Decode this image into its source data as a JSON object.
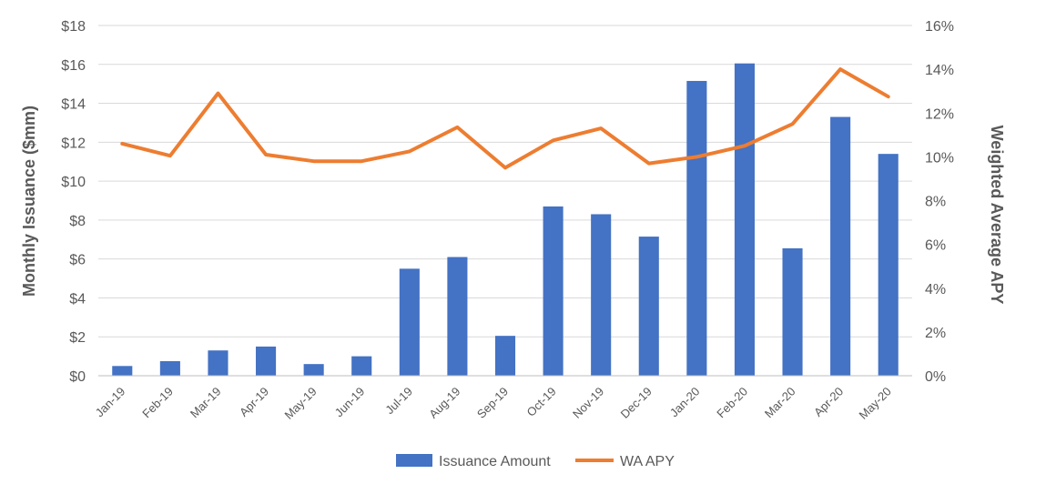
{
  "chart_data": {
    "type": "bar",
    "categories": [
      "Jan-19",
      "Feb-19",
      "Mar-19",
      "Apr-19",
      "May-19",
      "Jun-19",
      "Jul-19",
      "Aug-19",
      "Sep-19",
      "Oct-19",
      "Nov-19",
      "Dec-19",
      "Jan-20",
      "Feb-20",
      "Mar-20",
      "Apr-20",
      "May-20"
    ],
    "series": [
      {
        "name": "Issuance Amount",
        "type": "bar",
        "axis": "left",
        "color": "#4472C4",
        "values": [
          0.5,
          0.75,
          1.3,
          1.5,
          0.6,
          1.0,
          5.5,
          6.1,
          2.05,
          8.7,
          8.3,
          7.15,
          15.15,
          16.05,
          6.55,
          13.3,
          11.4
        ]
      },
      {
        "name": "WA APY",
        "type": "line",
        "axis": "right",
        "color": "#ED7D31",
        "values": [
          0.106,
          0.1005,
          0.129,
          0.101,
          0.098,
          0.098,
          0.1025,
          0.1135,
          0.095,
          0.1075,
          0.113,
          0.097,
          0.1,
          0.105,
          0.115,
          0.14,
          0.1275
        ]
      }
    ],
    "ylabel": "Monthly Issuance ($mm)",
    "y2label": "Weighted Average APY",
    "ylim": [
      0,
      18
    ],
    "y2lim": [
      0,
      0.16
    ],
    "yticks": [
      "$0",
      "$2",
      "$4",
      "$6",
      "$8",
      "$10",
      "$12",
      "$14",
      "$16",
      "$18"
    ],
    "y2ticks": [
      "0%",
      "2%",
      "4%",
      "6%",
      "8%",
      "10%",
      "12%",
      "14%",
      "16%"
    ],
    "grid": true,
    "legend_position": "bottom"
  }
}
